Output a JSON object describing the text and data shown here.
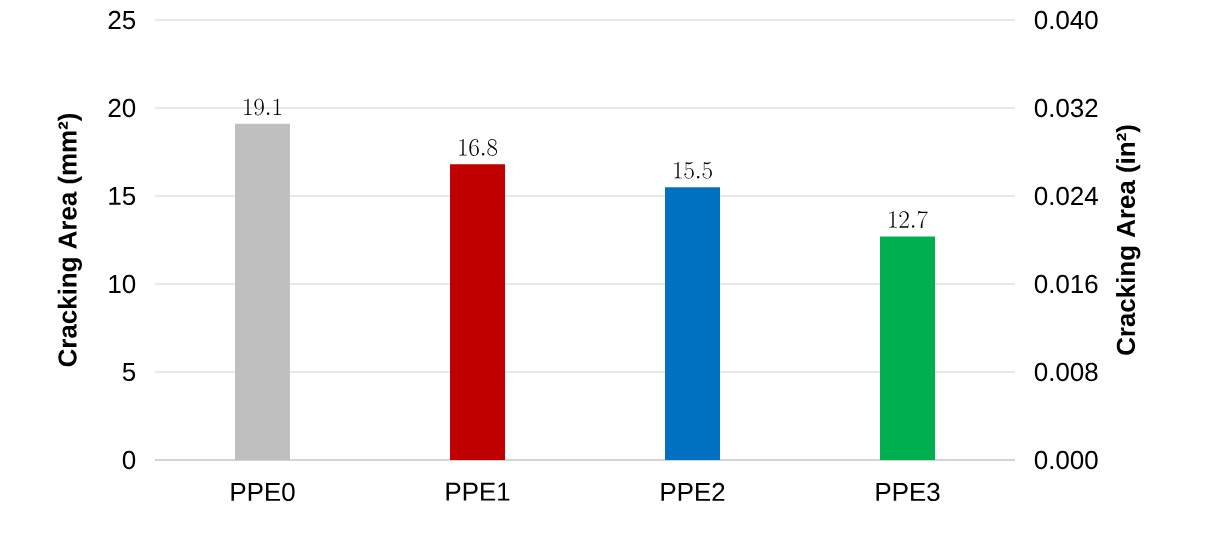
{
  "chart_data": {
    "type": "bar",
    "ylabel": "Cracking Area (mm²)",
    "y2label": "Cracking Area (in²)",
    "categories": [
      "PPE0",
      "PPE1",
      "PPE2",
      "PPE3"
    ],
    "values": [
      19.1,
      16.8,
      15.5,
      12.7
    ],
    "colors": [
      "#bfbfbf",
      "#c00000",
      "#0070c0",
      "#00b050"
    ],
    "ylim": [
      0,
      25
    ],
    "yticks": [
      0,
      5,
      10,
      15,
      20,
      25
    ],
    "y2lim": [
      0,
      0.04
    ],
    "y2ticks": [
      {
        "value": 0,
        "label": "0.000"
      },
      {
        "value": 0.008,
        "label": "0.008"
      },
      {
        "value": 0.016,
        "label": "0.016"
      },
      {
        "value": 0.024,
        "label": "0.024"
      },
      {
        "value": 0.032,
        "label": "0.032"
      },
      {
        "value": 0.04,
        "label": "0.040"
      }
    ],
    "grid": "y",
    "data_labels": true
  }
}
